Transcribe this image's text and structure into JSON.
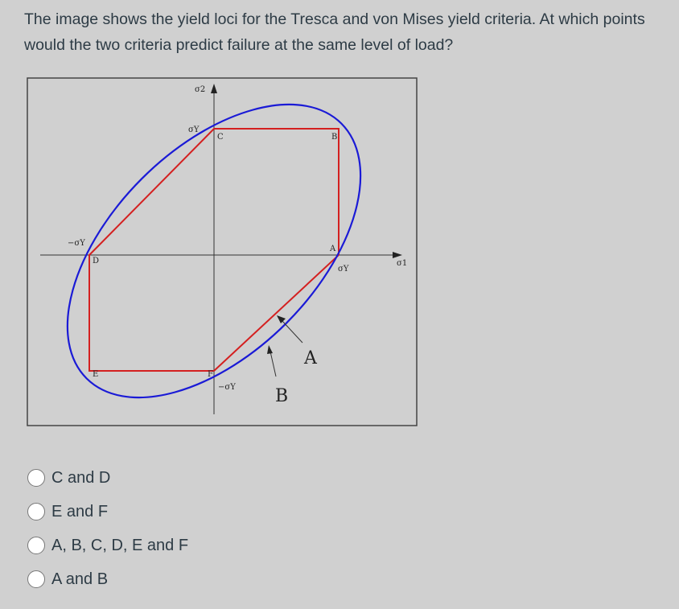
{
  "question": "The image shows the yield loci for the Tresca and von Mises yield criteria. At which points would the two criteria predict failure at the same level of load?",
  "figure": {
    "labels": [
      "σ2",
      "σY",
      "C",
      "B",
      "−σY",
      "D",
      "A",
      "σY",
      "σ1",
      "E",
      "F",
      "−σY",
      "A",
      "B"
    ]
  },
  "options": [
    "C and D",
    "E and F",
    "A, B, C, D, E and F",
    "A and B"
  ]
}
